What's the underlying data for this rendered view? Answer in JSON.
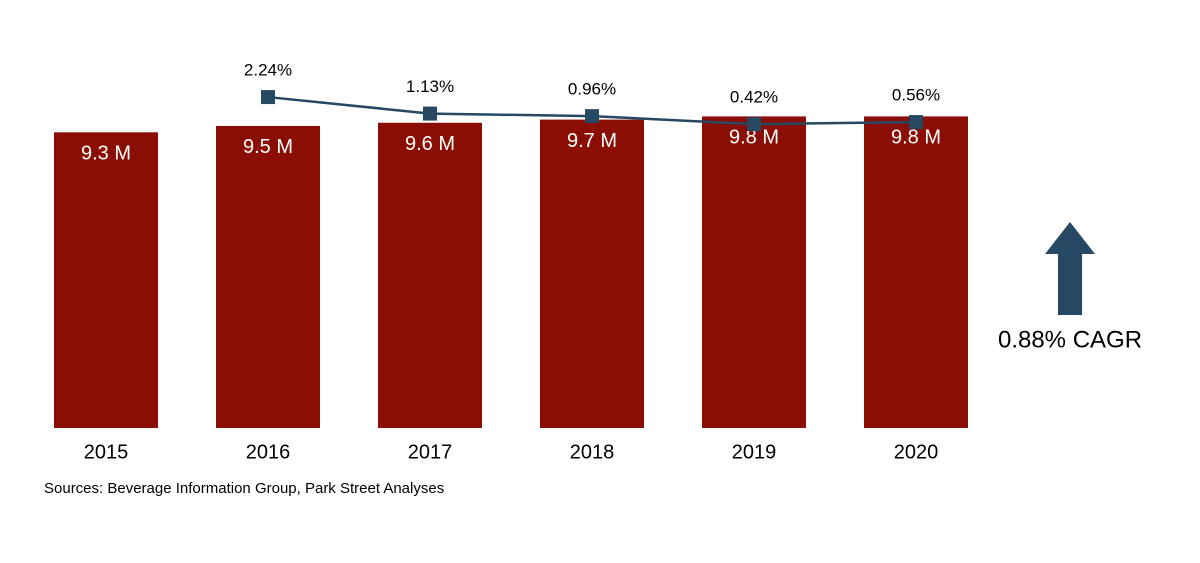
{
  "chart_data": {
    "type": "bar",
    "categories": [
      "2015",
      "2016",
      "2017",
      "2018",
      "2019",
      "2020"
    ],
    "series": [
      {
        "type": "bar",
        "color": "#8b0e04",
        "values": [
          9.3,
          9.5,
          9.6,
          9.7,
          9.8,
          9.8
        ],
        "value_labels": [
          "9.3 M",
          "9.5 M",
          "9.6 M",
          "9.7 M",
          "9.8 M",
          "9.8 M"
        ]
      },
      {
        "type": "line",
        "axis": "y2",
        "color": "#264863",
        "values": [
          null,
          2.24,
          1.13,
          0.96,
          0.42,
          0.56
        ],
        "value_labels": [
          null,
          "2.24%",
          "1.13%",
          "0.96%",
          "0.42%",
          "0.56%"
        ]
      }
    ],
    "ylim": [
      0,
      11.7
    ],
    "y2lim": [
      -20,
      5
    ],
    "grid": false,
    "annotation": "0.88% CAGR",
    "source": "Sources: Beverage Information Group, Park Street Analyses"
  }
}
